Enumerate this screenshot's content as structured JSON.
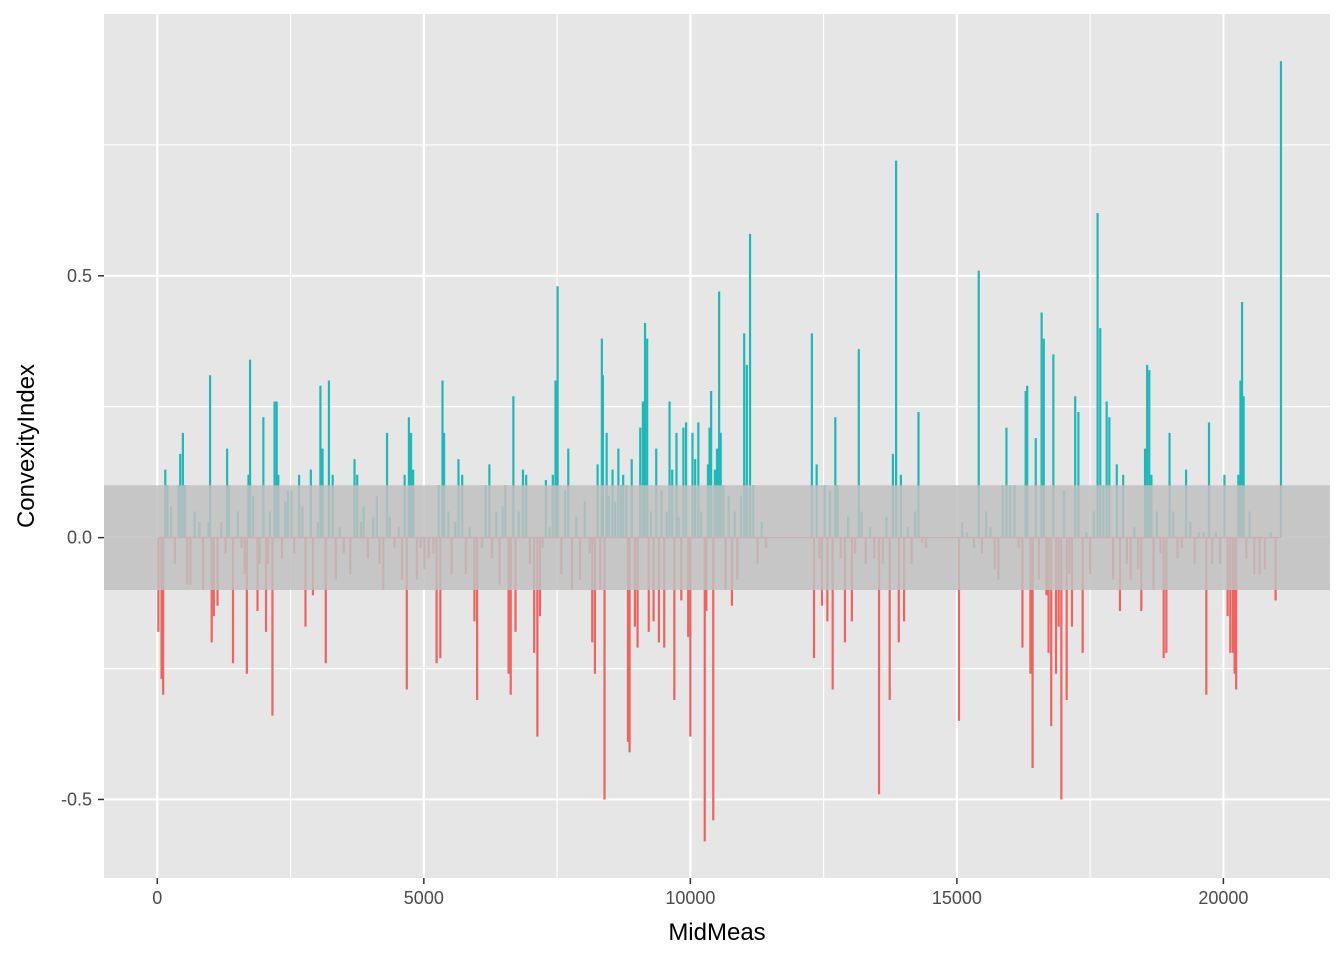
{
  "chart_data": {
    "type": "bar",
    "title": "",
    "xlabel": "MidMeas",
    "ylabel": "ConvexityIndex",
    "xlim": [
      -1000,
      22000
    ],
    "ylim": [
      -0.65,
      1.0
    ],
    "x_ticks": [
      0,
      5000,
      10000,
      15000,
      20000
    ],
    "x_tick_labels": [
      "0",
      "5000",
      "10000",
      "15000",
      "20000"
    ],
    "y_ticks": [
      -0.5,
      0.0,
      0.5
    ],
    "y_tick_labels": [
      "-0.5",
      "0.0",
      "0.5"
    ],
    "grid": true,
    "legend": "none",
    "band": {
      "ymin": -0.1,
      "ymax": 0.1,
      "color": "#bfbfbf"
    },
    "colors": {
      "positive": "#1fb8b8",
      "negative": "#f0625d",
      "panel": "#e6e6e6",
      "grid": "#ffffff"
    },
    "points": [
      [
        20,
        -0.18
      ],
      [
        80,
        -0.27
      ],
      [
        110,
        -0.3
      ],
      [
        150,
        0.13
      ],
      [
        190,
        0.1
      ],
      [
        260,
        0.06
      ],
      [
        330,
        -0.05
      ],
      [
        400,
        0.1
      ],
      [
        430,
        0.16
      ],
      [
        470,
        0.1
      ],
      [
        480,
        0.2
      ],
      [
        520,
        0.1
      ],
      [
        560,
        -0.09
      ],
      [
        620,
        -0.09
      ],
      [
        700,
        0.05
      ],
      [
        790,
        0.03
      ],
      [
        860,
        -0.1
      ],
      [
        960,
        0.03
      ],
      [
        990,
        0.31
      ],
      [
        1020,
        -0.2
      ],
      [
        1060,
        -0.15
      ],
      [
        1130,
        -0.13
      ],
      [
        1200,
        0.03
      ],
      [
        1280,
        -0.03
      ],
      [
        1310,
        0.17
      ],
      [
        1340,
        0.1
      ],
      [
        1420,
        -0.24
      ],
      [
        1510,
        0.05
      ],
      [
        1580,
        -0.02
      ],
      [
        1640,
        -0.07
      ],
      [
        1680,
        -0.26
      ],
      [
        1710,
        0.12
      ],
      [
        1740,
        0.34
      ],
      [
        1800,
        0.08
      ],
      [
        1880,
        -0.14
      ],
      [
        1920,
        -0.05
      ],
      [
        1990,
        0.23
      ],
      [
        2040,
        -0.18
      ],
      [
        2080,
        -0.05
      ],
      [
        2110,
        0.05
      ],
      [
        2160,
        -0.34
      ],
      [
        2200,
        0.26
      ],
      [
        2240,
        0.26
      ],
      [
        2270,
        0.12
      ],
      [
        2340,
        -0.04
      ],
      [
        2400,
        0.07
      ],
      [
        2450,
        0.09
      ],
      [
        2520,
        0.09
      ],
      [
        2570,
        -0.03
      ],
      [
        2660,
        0.12
      ],
      [
        2720,
        0.06
      ],
      [
        2780,
        -0.17
      ],
      [
        2880,
        0.13
      ],
      [
        2920,
        -0.11
      ],
      [
        3010,
        0.03
      ],
      [
        3060,
        0.29
      ],
      [
        3100,
        0.17
      ],
      [
        3160,
        -0.24
      ],
      [
        3220,
        0.3
      ],
      [
        3290,
        0.12
      ],
      [
        3350,
        -0.08
      ],
      [
        3420,
        0.02
      ],
      [
        3500,
        -0.03
      ],
      [
        3620,
        -0.07
      ],
      [
        3700,
        0.15
      ],
      [
        3750,
        0.12
      ],
      [
        3820,
        0.03
      ],
      [
        3870,
        0.06
      ],
      [
        3950,
        -0.04
      ],
      [
        4050,
        0.04
      ],
      [
        4120,
        0.08
      ],
      [
        4170,
        -0.05
      ],
      [
        4240,
        -0.1
      ],
      [
        4310,
        0.2
      ],
      [
        4360,
        0.04
      ],
      [
        4450,
        -0.02
      ],
      [
        4530,
        0.02
      ],
      [
        4590,
        -0.08
      ],
      [
        4640,
        0.12
      ],
      [
        4680,
        -0.29
      ],
      [
        4720,
        0.23
      ],
      [
        4760,
        0.2
      ],
      [
        4800,
        0.13
      ],
      [
        4870,
        -0.08
      ],
      [
        4940,
        -0.02
      ],
      [
        5010,
        -0.06
      ],
      [
        5090,
        -0.04
      ],
      [
        5180,
        -0.03
      ],
      [
        5240,
        -0.24
      ],
      [
        5280,
        0.1
      ],
      [
        5310,
        -0.23
      ],
      [
        5350,
        0.3
      ],
      [
        5380,
        0.2
      ],
      [
        5460,
        0.05
      ],
      [
        5520,
        -0.07
      ],
      [
        5590,
        0.03
      ],
      [
        5650,
        0.15
      ],
      [
        5720,
        0.12
      ],
      [
        5790,
        -0.07
      ],
      [
        5860,
        0.02
      ],
      [
        5950,
        -0.16
      ],
      [
        6000,
        -0.31
      ],
      [
        6090,
        -0.02
      ],
      [
        6160,
        0.1
      ],
      [
        6230,
        0.14
      ],
      [
        6280,
        -0.04
      ],
      [
        6360,
        0.05
      ],
      [
        6420,
        -0.09
      ],
      [
        6480,
        0.06
      ],
      [
        6530,
        0.1
      ],
      [
        6590,
        -0.26
      ],
      [
        6630,
        -0.3
      ],
      [
        6680,
        0.27
      ],
      [
        6720,
        -0.18
      ],
      [
        6780,
        0.05
      ],
      [
        6860,
        0.13
      ],
      [
        6920,
        0.12
      ],
      [
        6990,
        -0.05
      ],
      [
        7070,
        -0.22
      ],
      [
        7130,
        -0.38
      ],
      [
        7180,
        -0.15
      ],
      [
        7230,
        -0.02
      ],
      [
        7290,
        0.11
      ],
      [
        7360,
        0.02
      ],
      [
        7420,
        0.12
      ],
      [
        7470,
        0.3
      ],
      [
        7510,
        0.48
      ],
      [
        7580,
        -0.07
      ],
      [
        7650,
        0.09
      ],
      [
        7710,
        0.17
      ],
      [
        7780,
        -0.1
      ],
      [
        7860,
        0.04
      ],
      [
        7930,
        -0.08
      ],
      [
        8020,
        0.07
      ],
      [
        8110,
        -0.03
      ],
      [
        8160,
        -0.2
      ],
      [
        8210,
        -0.26
      ],
      [
        8260,
        0.14
      ],
      [
        8310,
        -0.1
      ],
      [
        8340,
        0.38
      ],
      [
        8360,
        0.31
      ],
      [
        8390,
        -0.5
      ],
      [
        8430,
        0.2
      ],
      [
        8470,
        0.08
      ],
      [
        8540,
        0.13
      ],
      [
        8590,
        0.07
      ],
      [
        8650,
        0.17
      ],
      [
        8700,
        0.1
      ],
      [
        8740,
        0.12
      ],
      [
        8800,
        0.1
      ],
      [
        8830,
        -0.39
      ],
      [
        8860,
        -0.41
      ],
      [
        8900,
        0.15
      ],
      [
        8960,
        -0.17
      ],
      [
        9010,
        -0.21
      ],
      [
        9060,
        0.21
      ],
      [
        9110,
        0.26
      ],
      [
        9150,
        0.41
      ],
      [
        9190,
        0.38
      ],
      [
        9220,
        -0.18
      ],
      [
        9260,
        0.05
      ],
      [
        9310,
        -0.16
      ],
      [
        9360,
        0.17
      ],
      [
        9410,
        -0.2
      ],
      [
        9460,
        0.09
      ],
      [
        9510,
        -0.21
      ],
      [
        9560,
        0.05
      ],
      [
        9610,
        0.26
      ],
      [
        9660,
        0.13
      ],
      [
        9700,
        -0.31
      ],
      [
        9740,
        0.2
      ],
      [
        9780,
        0.04
      ],
      [
        9830,
        -0.12
      ],
      [
        9870,
        0.21
      ],
      [
        9920,
        0.22
      ],
      [
        9960,
        -0.19
      ],
      [
        10000,
        -0.38
      ],
      [
        10040,
        0.2
      ],
      [
        10090,
        0.15
      ],
      [
        10150,
        0.22
      ],
      [
        10200,
        0.05
      ],
      [
        10270,
        -0.58
      ],
      [
        10300,
        -0.14
      ],
      [
        10330,
        0.14
      ],
      [
        10360,
        0.21
      ],
      [
        10390,
        0.28
      ],
      [
        10430,
        -0.54
      ],
      [
        10460,
        0.13
      ],
      [
        10500,
        0.17
      ],
      [
        10540,
        0.47
      ],
      [
        10570,
        0.2
      ],
      [
        10620,
        0.1
      ],
      [
        10660,
        -0.1
      ],
      [
        10720,
        0.08
      ],
      [
        10780,
        -0.13
      ],
      [
        10830,
        0.05
      ],
      [
        10880,
        -0.08
      ],
      [
        10950,
        0.08
      ],
      [
        11010,
        0.39
      ],
      [
        11060,
        0.33
      ],
      [
        11120,
        0.58
      ],
      [
        11180,
        0.1
      ],
      [
        11260,
        -0.05
      ],
      [
        11340,
        0.03
      ],
      [
        11420,
        -0.02
      ],
      [
        12280,
        0.39
      ],
      [
        12320,
        -0.23
      ],
      [
        12370,
        0.14
      ],
      [
        12420,
        -0.04
      ],
      [
        12470,
        -0.13
      ],
      [
        12520,
        0.1
      ],
      [
        12570,
        -0.16
      ],
      [
        12620,
        0.09
      ],
      [
        12670,
        -0.29
      ],
      [
        12720,
        0.23
      ],
      [
        12760,
        0.1
      ],
      [
        12820,
        -0.04
      ],
      [
        12900,
        -0.2
      ],
      [
        12960,
        0.04
      ],
      [
        13030,
        -0.16
      ],
      [
        13090,
        -0.03
      ],
      [
        13160,
        0.36
      ],
      [
        13210,
        0.05
      ],
      [
        13290,
        -0.05
      ],
      [
        13370,
        0.02
      ],
      [
        13450,
        -0.04
      ],
      [
        13540,
        -0.49
      ],
      [
        13610,
        -0.05
      ],
      [
        13680,
        0.04
      ],
      [
        13740,
        -0.31
      ],
      [
        13800,
        0.16
      ],
      [
        13860,
        0.72
      ],
      [
        13910,
        -0.2
      ],
      [
        13950,
        0.12
      ],
      [
        14010,
        -0.16
      ],
      [
        14080,
        0.02
      ],
      [
        14150,
        -0.05
      ],
      [
        14220,
        0.05
      ],
      [
        14280,
        0.24
      ],
      [
        14350,
        -0.01
      ],
      [
        14420,
        -0.02
      ],
      [
        15040,
        -0.35
      ],
      [
        15100,
        0.03
      ],
      [
        15190,
        0.01
      ],
      [
        15320,
        -0.02
      ],
      [
        15410,
        0.51
      ],
      [
        15470,
        -0.03
      ],
      [
        15550,
        0.05
      ],
      [
        15630,
        0.02
      ],
      [
        15710,
        -0.06
      ],
      [
        15780,
        -0.08
      ],
      [
        15860,
        0.1
      ],
      [
        15930,
        0.21
      ],
      [
        16000,
        0.1
      ],
      [
        16080,
        0.1
      ],
      [
        16160,
        -0.02
      ],
      [
        16230,
        -0.21
      ],
      [
        16290,
        0.28
      ],
      [
        16320,
        0.29
      ],
      [
        16380,
        -0.26
      ],
      [
        16420,
        -0.44
      ],
      [
        16480,
        0.19
      ],
      [
        16540,
        -0.08
      ],
      [
        16590,
        0.43
      ],
      [
        16630,
        0.38
      ],
      [
        16680,
        -0.11
      ],
      [
        16720,
        -0.22
      ],
      [
        16770,
        -0.36
      ],
      [
        16810,
        0.35
      ],
      [
        16860,
        -0.26
      ],
      [
        16910,
        -0.17
      ],
      [
        16960,
        -0.5
      ],
      [
        17010,
        0.09
      ],
      [
        17060,
        -0.31
      ],
      [
        17110,
        -0.07
      ],
      [
        17160,
        -0.17
      ],
      [
        17220,
        0.27
      ],
      [
        17280,
        0.24
      ],
      [
        17360,
        -0.22
      ],
      [
        17430,
        0.01
      ],
      [
        17500,
        -0.07
      ],
      [
        17570,
        0.05
      ],
      [
        17640,
        0.62
      ],
      [
        17690,
        0.4
      ],
      [
        17750,
        0.1
      ],
      [
        17810,
        0.26
      ],
      [
        17860,
        0.23
      ],
      [
        17930,
        -0.08
      ],
      [
        18000,
        0.14
      ],
      [
        18060,
        -0.14
      ],
      [
        18120,
        0.12
      ],
      [
        18190,
        -0.05
      ],
      [
        18260,
        -0.08
      ],
      [
        18330,
        0.02
      ],
      [
        18400,
        -0.06
      ],
      [
        18460,
        -0.14
      ],
      [
        18530,
        0.17
      ],
      [
        18570,
        0.33
      ],
      [
        18610,
        0.32
      ],
      [
        18650,
        0.12
      ],
      [
        18690,
        -0.1
      ],
      [
        18750,
        0.05
      ],
      [
        18820,
        -0.03
      ],
      [
        18880,
        -0.23
      ],
      [
        18930,
        -0.22
      ],
      [
        18990,
        0.2
      ],
      [
        19060,
        0.05
      ],
      [
        19140,
        -0.04
      ],
      [
        19220,
        -0.02
      ],
      [
        19300,
        0.13
      ],
      [
        19380,
        0.03
      ],
      [
        19460,
        -0.05
      ],
      [
        19540,
        0.01
      ],
      [
        19630,
        0.01
      ],
      [
        19680,
        -0.3
      ],
      [
        19730,
        0.22
      ],
      [
        19790,
        -0.05
      ],
      [
        19860,
        0.01
      ],
      [
        19940,
        -0.05
      ],
      [
        20020,
        0.12
      ],
      [
        20080,
        -0.15
      ],
      [
        20130,
        -0.22
      ],
      [
        20180,
        -0.22
      ],
      [
        20210,
        -0.26
      ],
      [
        20240,
        -0.29
      ],
      [
        20280,
        0.12
      ],
      [
        20320,
        0.3
      ],
      [
        20350,
        0.45
      ],
      [
        20380,
        0.27
      ],
      [
        20430,
        -0.04
      ],
      [
        20490,
        0.05
      ],
      [
        20580,
        -0.07
      ],
      [
        20680,
        -0.07
      ],
      [
        20780,
        -0.06
      ],
      [
        20890,
        0.01
      ],
      [
        20980,
        -0.12
      ],
      [
        21080,
        0.91
      ]
    ]
  }
}
